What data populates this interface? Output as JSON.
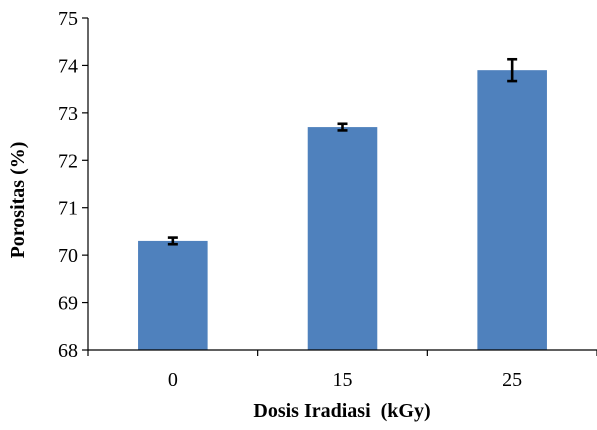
{
  "chart_data": {
    "type": "bar",
    "categories": [
      "0",
      "15",
      "25"
    ],
    "values": [
      70.3,
      72.7,
      73.9
    ],
    "errors": [
      0.07,
      0.07,
      0.23
    ],
    "xlabel": "Dosis Iradiasi  (kGy)",
    "ylabel": "Porositas (%)",
    "ylim": [
      68,
      75
    ],
    "yticks": [
      "68",
      "69",
      "70",
      "71",
      "72",
      "73",
      "74",
      "75"
    ],
    "grid": false,
    "legend": "none",
    "bar_color": "#4f81bd",
    "error_color": "#000000"
  }
}
